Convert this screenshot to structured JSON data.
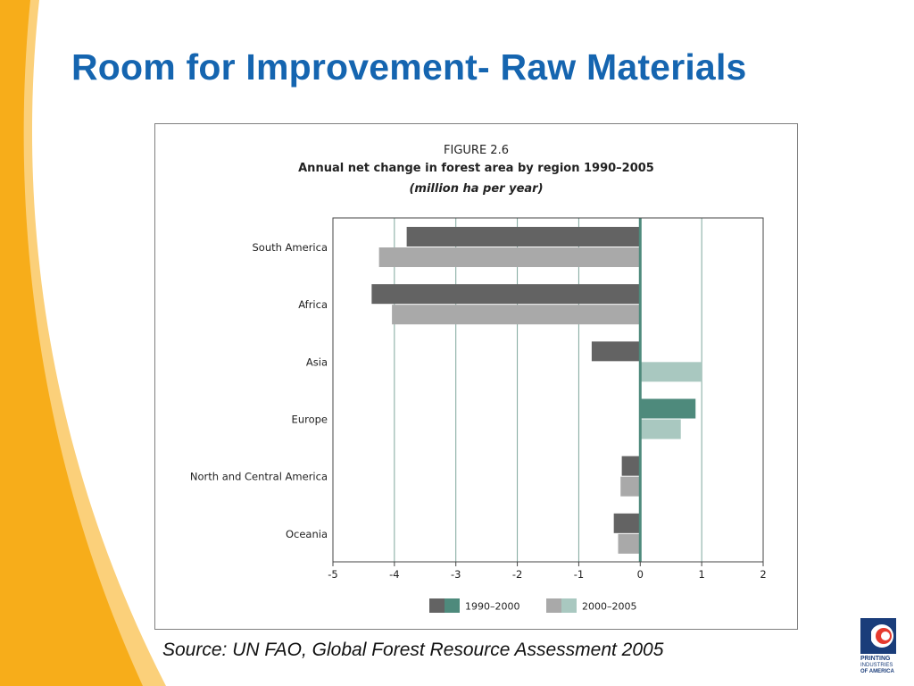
{
  "slide": {
    "title": "Room for Improvement- Raw Materials",
    "source": "Source: UN FAO, Global Forest Resource Assessment 2005",
    "logo": {
      "line1": "PRINTING",
      "line2": "INDUSTRIES",
      "line3": "OF AMERICA"
    },
    "colors": {
      "title": "#1565b0",
      "accent_orange": "#f7ad1a",
      "accent_light": "#fbd07a"
    }
  },
  "figure": {
    "label": "FIGURE 2.6",
    "title": "Annual net change in forest area by region 1990–2005",
    "subtitle": "(million ha per year)"
  },
  "chart_data": {
    "type": "bar",
    "orientation": "horizontal",
    "categories": [
      "South America",
      "Africa",
      "Asia",
      "Europe",
      "North and Central America",
      "Oceania"
    ],
    "series": [
      {
        "name": "1990–2000",
        "values": [
          -3.8,
          -4.37,
          -0.79,
          0.9,
          -0.3,
          -0.43
        ],
        "color_negative": "#636363",
        "color_positive": "#4e8a7c"
      },
      {
        "name": "2000–2005",
        "values": [
          -4.25,
          -4.04,
          1.0,
          0.66,
          -0.32,
          -0.36
        ],
        "color_negative": "#a9a9a9",
        "color_positive": "#a9c8c0"
      }
    ],
    "x_ticks": [
      "-5",
      "-4",
      "-3",
      "-2",
      "-1",
      "0",
      "1",
      "2"
    ],
    "xlim": [
      -5,
      2
    ],
    "grid": true,
    "legend_position": "bottom-center"
  }
}
